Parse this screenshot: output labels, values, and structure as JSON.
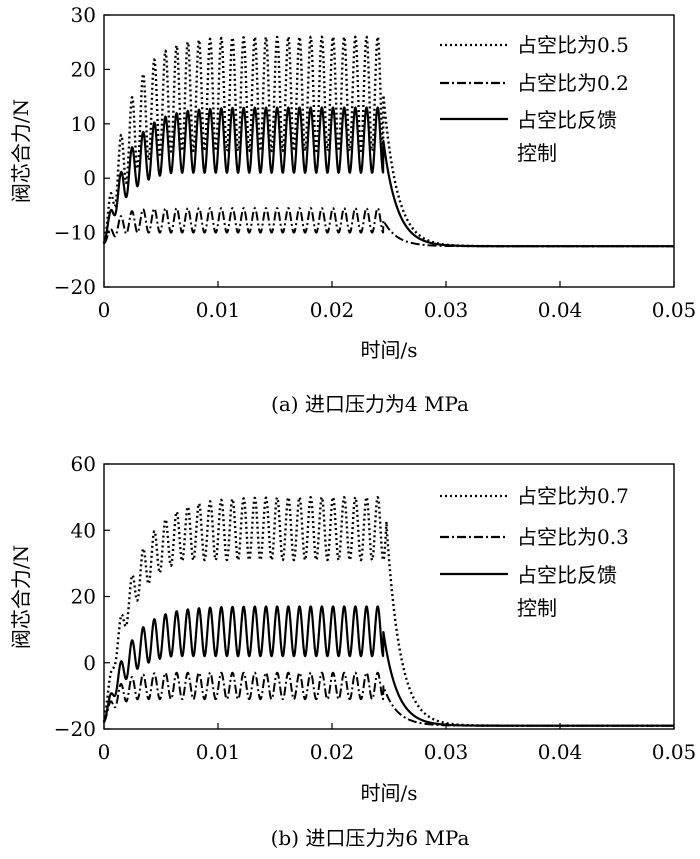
{
  "chart_data": [
    {
      "type": "line",
      "caption": "(a) 进口压力为4 MPa",
      "xlabel": "时间/s",
      "ylabel": "阀芯合力/N",
      "xlim": [
        0,
        0.05
      ],
      "ylim": [
        -20,
        30
      ],
      "x_ticks": [
        "0",
        "0.01",
        "0.02",
        "0.03",
        "0.04",
        "0.05"
      ],
      "y_ticks": [
        "30",
        "20",
        "10",
        "0",
        "−10",
        "−20"
      ],
      "grid": false,
      "legend_position": "top-right",
      "series": [
        {
          "name": "占空比为0.5",
          "style": "dotted",
          "start": -12,
          "upper": 26,
          "lower": 5,
          "rise": 0.006,
          "off_time": 0.0245,
          "end": -12.5
        },
        {
          "name": "占空比为0.2",
          "style": "dashdot",
          "start": -12,
          "upper": -5.5,
          "lower": -10,
          "rise": 0.003,
          "off_time": 0.0245,
          "end": -12.5
        },
        {
          "name": "占空比反馈控制",
          "name_lines": [
            "占空比反馈",
            "控制"
          ],
          "style": "solid",
          "start": -12,
          "upper": 13,
          "lower": 1,
          "rise": 0.006,
          "off_time": 0.0245,
          "end": -12.5
        }
      ]
    },
    {
      "type": "line",
      "caption": "(b) 进口压力为6 MPa",
      "xlabel": "时间/s",
      "ylabel": "阀芯合力/N",
      "xlim": [
        0,
        0.05
      ],
      "ylim": [
        -20,
        60
      ],
      "x_ticks": [
        "0",
        "0.01",
        "0.02",
        "0.03",
        "0.04",
        "0.05"
      ],
      "y_ticks": [
        "60",
        "40",
        "20",
        "0",
        "−20"
      ],
      "grid": false,
      "legend_position": "top-right",
      "series": [
        {
          "name": "占空比为0.7",
          "style": "dotted",
          "start": -18,
          "upper": 50,
          "lower": 31,
          "rise": 0.007,
          "off_time": 0.0248,
          "end": -19
        },
        {
          "name": "占空比为0.3",
          "style": "dashdot",
          "start": -18,
          "upper": -3,
          "lower": -11,
          "rise": 0.003,
          "off_time": 0.0245,
          "end": -19
        },
        {
          "name": "占空比反馈控制",
          "name_lines": [
            "占空比反馈",
            "控制"
          ],
          "style": "solid",
          "start": -18,
          "upper": 17,
          "lower": 2,
          "rise": 0.006,
          "off_time": 0.0245,
          "end": -19
        }
      ]
    }
  ]
}
